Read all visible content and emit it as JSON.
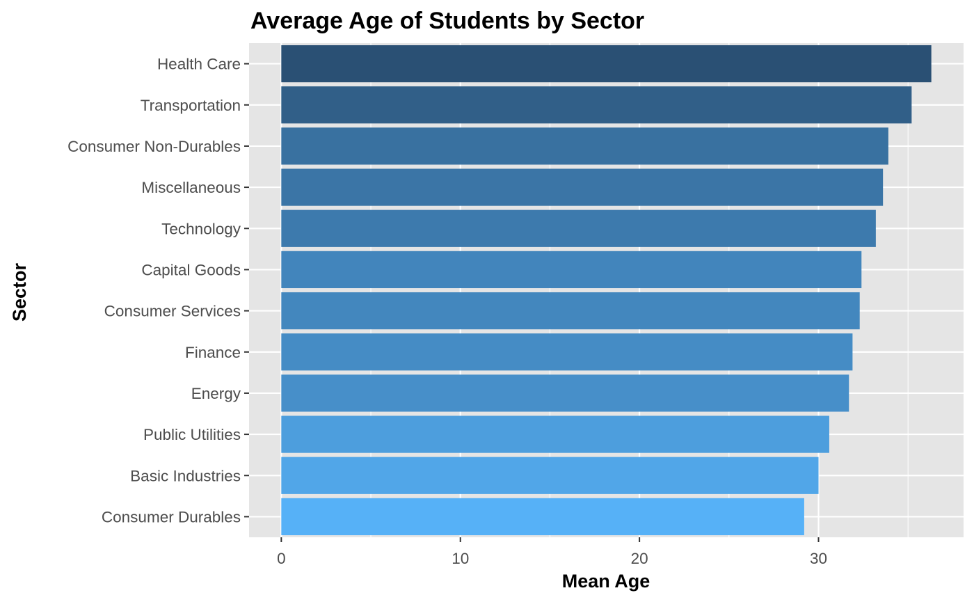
{
  "chart_data": {
    "type": "bar",
    "orientation": "horizontal",
    "title": "Average Age of Students by Sector",
    "xlabel": "Mean Age",
    "ylabel": "Sector",
    "categories": [
      "Health Care",
      "Transportation",
      "Consumer Non-Durables",
      "Miscellaneous",
      "Technology",
      "Capital Goods",
      "Consumer Services",
      "Finance",
      "Energy",
      "Public Utilities",
      "Basic Industries",
      "Consumer Durables"
    ],
    "values": [
      36.3,
      35.2,
      33.9,
      33.6,
      33.2,
      32.4,
      32.3,
      31.9,
      31.7,
      30.6,
      30.0,
      29.2
    ],
    "xlim": [
      -1.8,
      38.1
    ],
    "xticks": [
      0,
      10,
      20,
      30
    ],
    "grid": true,
    "legend": "none",
    "colors": {
      "panel_background": "#e5e5e5",
      "grid": "#ffffff",
      "bar_low": "#56b1f7",
      "bar_high": "#2a5074"
    }
  }
}
